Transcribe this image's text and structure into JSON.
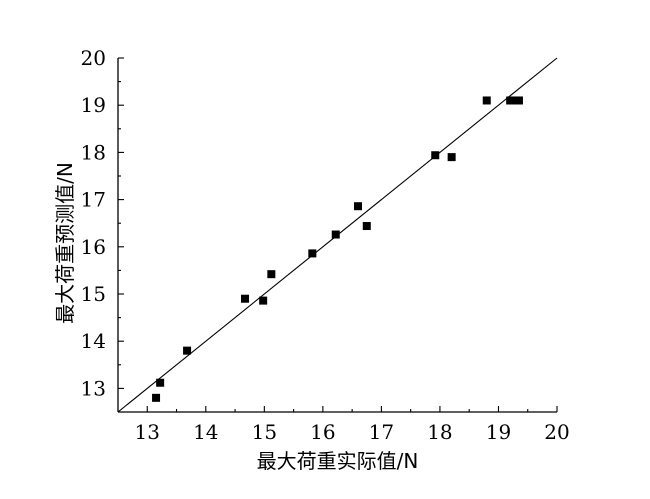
{
  "chart_data": {
    "type": "scatter",
    "title": "",
    "xlabel": "最大荷重实际值/N",
    "ylabel": "最大荷重预测值/N",
    "xlim": [
      12.5,
      20
    ],
    "ylim": [
      12.5,
      20
    ],
    "x_ticks": [
      "13",
      "14",
      "15",
      "16",
      "17",
      "18",
      "19",
      "20"
    ],
    "y_ticks": [
      "13",
      "14",
      "15",
      "16",
      "17",
      "18",
      "19",
      "20"
    ],
    "grid": false,
    "legend": "none",
    "reference_line": {
      "from": [
        12.5,
        12.5
      ],
      "to": [
        20,
        20
      ]
    },
    "series": [
      {
        "marker": "square",
        "x": [
          13.15,
          13.22,
          13.68,
          14.67,
          14.98,
          15.12,
          15.82,
          16.22,
          16.6,
          16.75,
          17.92,
          18.2,
          18.8,
          19.2,
          19.28,
          19.35
        ],
        "y": [
          12.8,
          13.12,
          13.8,
          14.9,
          14.86,
          15.42,
          15.86,
          16.26,
          16.86,
          16.44,
          17.94,
          17.9,
          19.1,
          19.1,
          19.1,
          19.1
        ]
      }
    ]
  }
}
